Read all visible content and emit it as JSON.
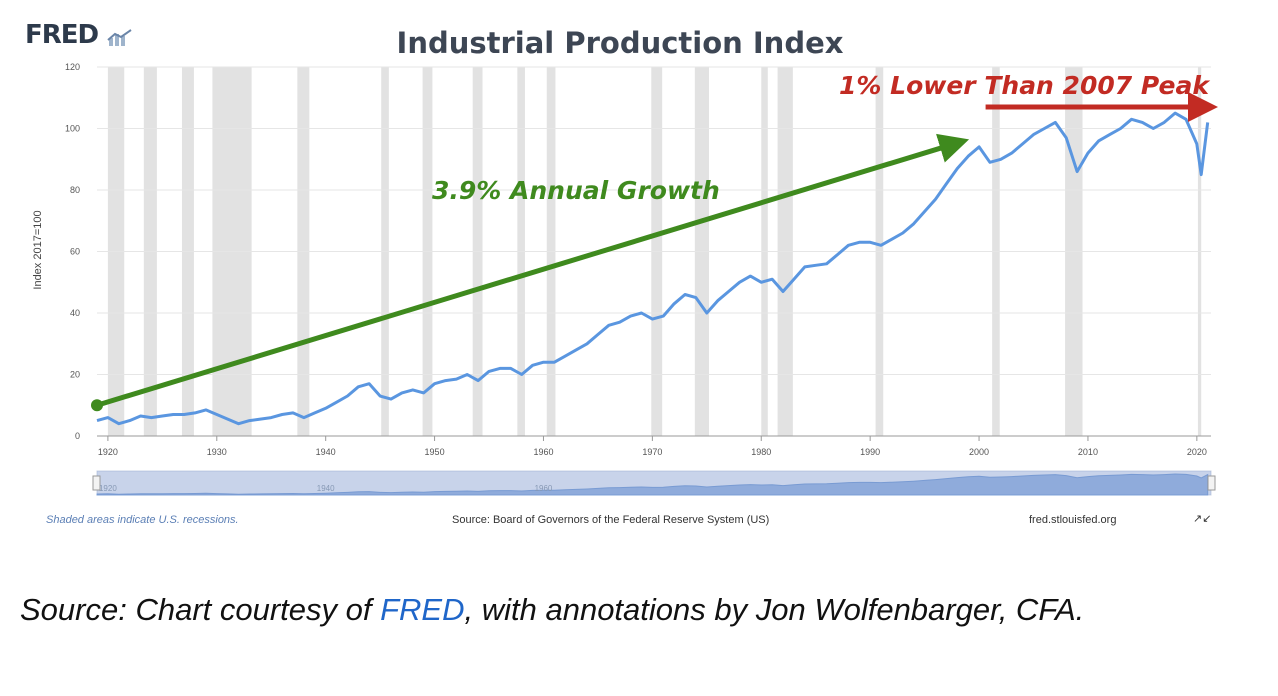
{
  "brand": {
    "logo_text": "FRED"
  },
  "colors": {
    "line": "#5a96e0",
    "recession": "#e2e2e2",
    "growth_arrow": "#3f8a1e",
    "peak_arrow": "#c22b23",
    "link": "#1f66c9"
  },
  "chart_data": {
    "type": "line",
    "title": "Industrial Production Index",
    "ylabel": "Index 2017=100",
    "xlabel": "",
    "xlim": [
      1919,
      2021.3
    ],
    "ylim": [
      0,
      120
    ],
    "x_ticks": [
      1920,
      1930,
      1940,
      1950,
      1960,
      1970,
      1980,
      1990,
      2000,
      2010,
      2020
    ],
    "y_ticks": [
      0,
      20,
      40,
      60,
      80,
      100,
      120
    ],
    "grid": true,
    "recessions": [
      [
        1920.0,
        1921.5
      ],
      [
        1923.3,
        1924.5
      ],
      [
        1926.8,
        1927.9
      ],
      [
        1929.6,
        1933.2
      ],
      [
        1937.4,
        1938.5
      ],
      [
        1945.1,
        1945.8
      ],
      [
        1948.9,
        1949.8
      ],
      [
        1953.5,
        1954.4
      ],
      [
        1957.6,
        1958.3
      ],
      [
        1960.3,
        1961.1
      ],
      [
        1969.9,
        1970.9
      ],
      [
        1973.9,
        1975.2
      ],
      [
        1980.0,
        1980.6
      ],
      [
        1981.5,
        1982.9
      ],
      [
        1990.5,
        1991.2
      ],
      [
        2001.2,
        2001.9
      ],
      [
        2007.9,
        2009.5
      ],
      [
        2020.1,
        2020.4
      ]
    ],
    "series": [
      {
        "x": [
          1919,
          1920,
          1921,
          1922,
          1923,
          1924,
          1925,
          1926,
          1927,
          1928,
          1929,
          1930,
          1931,
          1932,
          1933,
          1934,
          1935,
          1936,
          1937,
          1938,
          1939,
          1940,
          1941,
          1942,
          1943,
          1944,
          1945,
          1946,
          1947,
          1948,
          1949,
          1950,
          1951,
          1952,
          1953,
          1954,
          1955,
          1956,
          1957,
          1958,
          1959,
          1960,
          1961,
          1962,
          1963,
          1964,
          1965,
          1966,
          1967,
          1968,
          1969,
          1970,
          1971,
          1972,
          1973,
          1974,
          1975,
          1976,
          1977,
          1978,
          1979,
          1980,
          1981,
          1982,
          1983,
          1984,
          1985,
          1986,
          1987,
          1988,
          1989,
          1990,
          1991,
          1992,
          1993,
          1994,
          1995,
          1996,
          1997,
          1998,
          1999,
          2000,
          2001,
          2002,
          2003,
          2004,
          2005,
          2006,
          2007,
          2008,
          2009,
          2010,
          2011,
          2012,
          2013,
          2014,
          2015,
          2016,
          2017,
          2018,
          2019,
          2020,
          2020.4,
          2021
        ],
        "y": [
          5,
          6,
          4,
          5,
          6.5,
          6,
          6.5,
          7,
          7,
          7.5,
          8.5,
          7,
          5.5,
          4,
          5,
          5.5,
          6,
          7,
          7.5,
          6,
          7.5,
          9,
          11,
          13,
          16,
          17,
          13,
          12,
          14,
          15,
          14,
          17,
          18,
          18.5,
          20,
          18,
          21,
          22,
          22,
          20,
          23,
          24,
          24,
          26,
          28,
          30,
          33,
          36,
          37,
          39,
          40,
          38,
          39,
          43,
          46,
          45,
          40,
          44,
          47,
          50,
          52,
          50,
          51,
          47,
          51,
          55,
          55.5,
          56,
          59,
          62,
          63,
          63,
          62,
          64,
          66,
          69,
          73,
          77,
          82,
          87,
          91,
          94,
          89,
          90,
          92,
          95,
          98,
          100,
          102,
          97,
          86,
          92,
          96,
          98,
          100,
          103,
          102,
          100,
          102,
          105,
          103,
          95,
          85,
          102
        ]
      }
    ],
    "annotations": {
      "growth_label": "3.9% Annual Growth",
      "peak_label": "1% Lower Than 2007 Peak"
    },
    "navigator_ticks": [
      1920,
      1940,
      1960
    ]
  },
  "footer": {
    "recession_note": "Shaded areas indicate U.S. recessions.",
    "source": "Source: Board of Governors of the Federal Reserve System (US)",
    "site": "fred.stlouisfed.org",
    "expand_glyph": "↗↙"
  },
  "caption": {
    "prefix": "Source: Chart courtesy of ",
    "link_text": "FRED",
    "suffix": ", with annotations by Jon Wolfenbarger, CFA."
  }
}
